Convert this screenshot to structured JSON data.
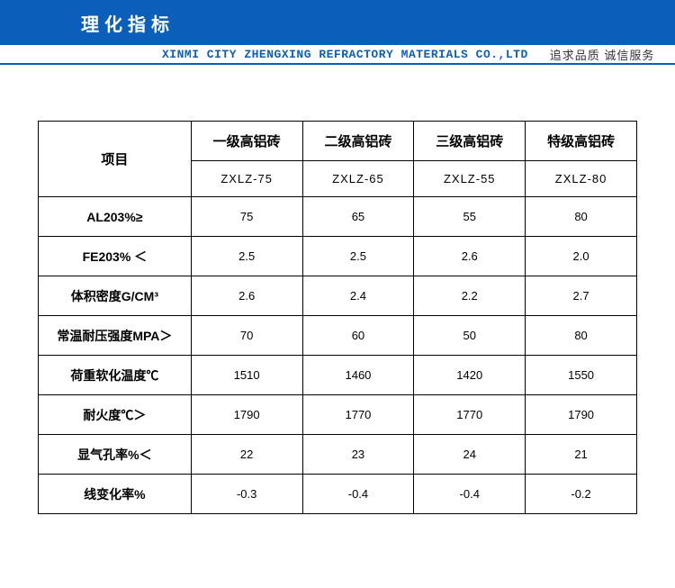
{
  "header": {
    "title": "理化指标",
    "company": "XINMI CITY ZHENGXING REFRACTORY MATERIALS CO.,LTD",
    "tagline": "追求品质  诚信服务"
  },
  "table": {
    "corner_label": "项目",
    "columns": [
      {
        "name": "一级高铝砖",
        "code": "ZXLZ-75"
      },
      {
        "name": "二级高铝砖",
        "code": "ZXLZ-65"
      },
      {
        "name": "三级高铝砖",
        "code": "ZXLZ-55"
      },
      {
        "name": "特级高铝砖",
        "code": "ZXLZ-80"
      }
    ],
    "rows": [
      {
        "label": "AL203%≥",
        "vals": [
          "75",
          "65",
          "55",
          "80"
        ]
      },
      {
        "label": "FE203% ＜",
        "vals": [
          "2.5",
          "2.5",
          "2.6",
          "2.0"
        ]
      },
      {
        "label": "体积密度G/CM³",
        "vals": [
          "2.6",
          "2.4",
          "2.2",
          "2.7"
        ]
      },
      {
        "label": "常温耐压强度MPA＞",
        "vals": [
          "70",
          "60",
          "50",
          "80"
        ]
      },
      {
        "label": "荷重软化温度℃",
        "vals": [
          "1510",
          "1460",
          "1420",
          "1550"
        ]
      },
      {
        "label": "耐火度℃＞",
        "vals": [
          "1790",
          "1770",
          "1770",
          "1790"
        ]
      },
      {
        "label": "显气孔率%＜",
        "vals": [
          "22",
          "23",
          "24",
          "21"
        ]
      },
      {
        "label": "线变化率%",
        "vals": [
          "-0.3",
          "-0.4",
          "-0.4",
          "-0.2"
        ]
      }
    ]
  },
  "colors": {
    "brand": "#0b5fbb",
    "border": "#000000",
    "bg": "#ffffff",
    "text": "#333333"
  }
}
